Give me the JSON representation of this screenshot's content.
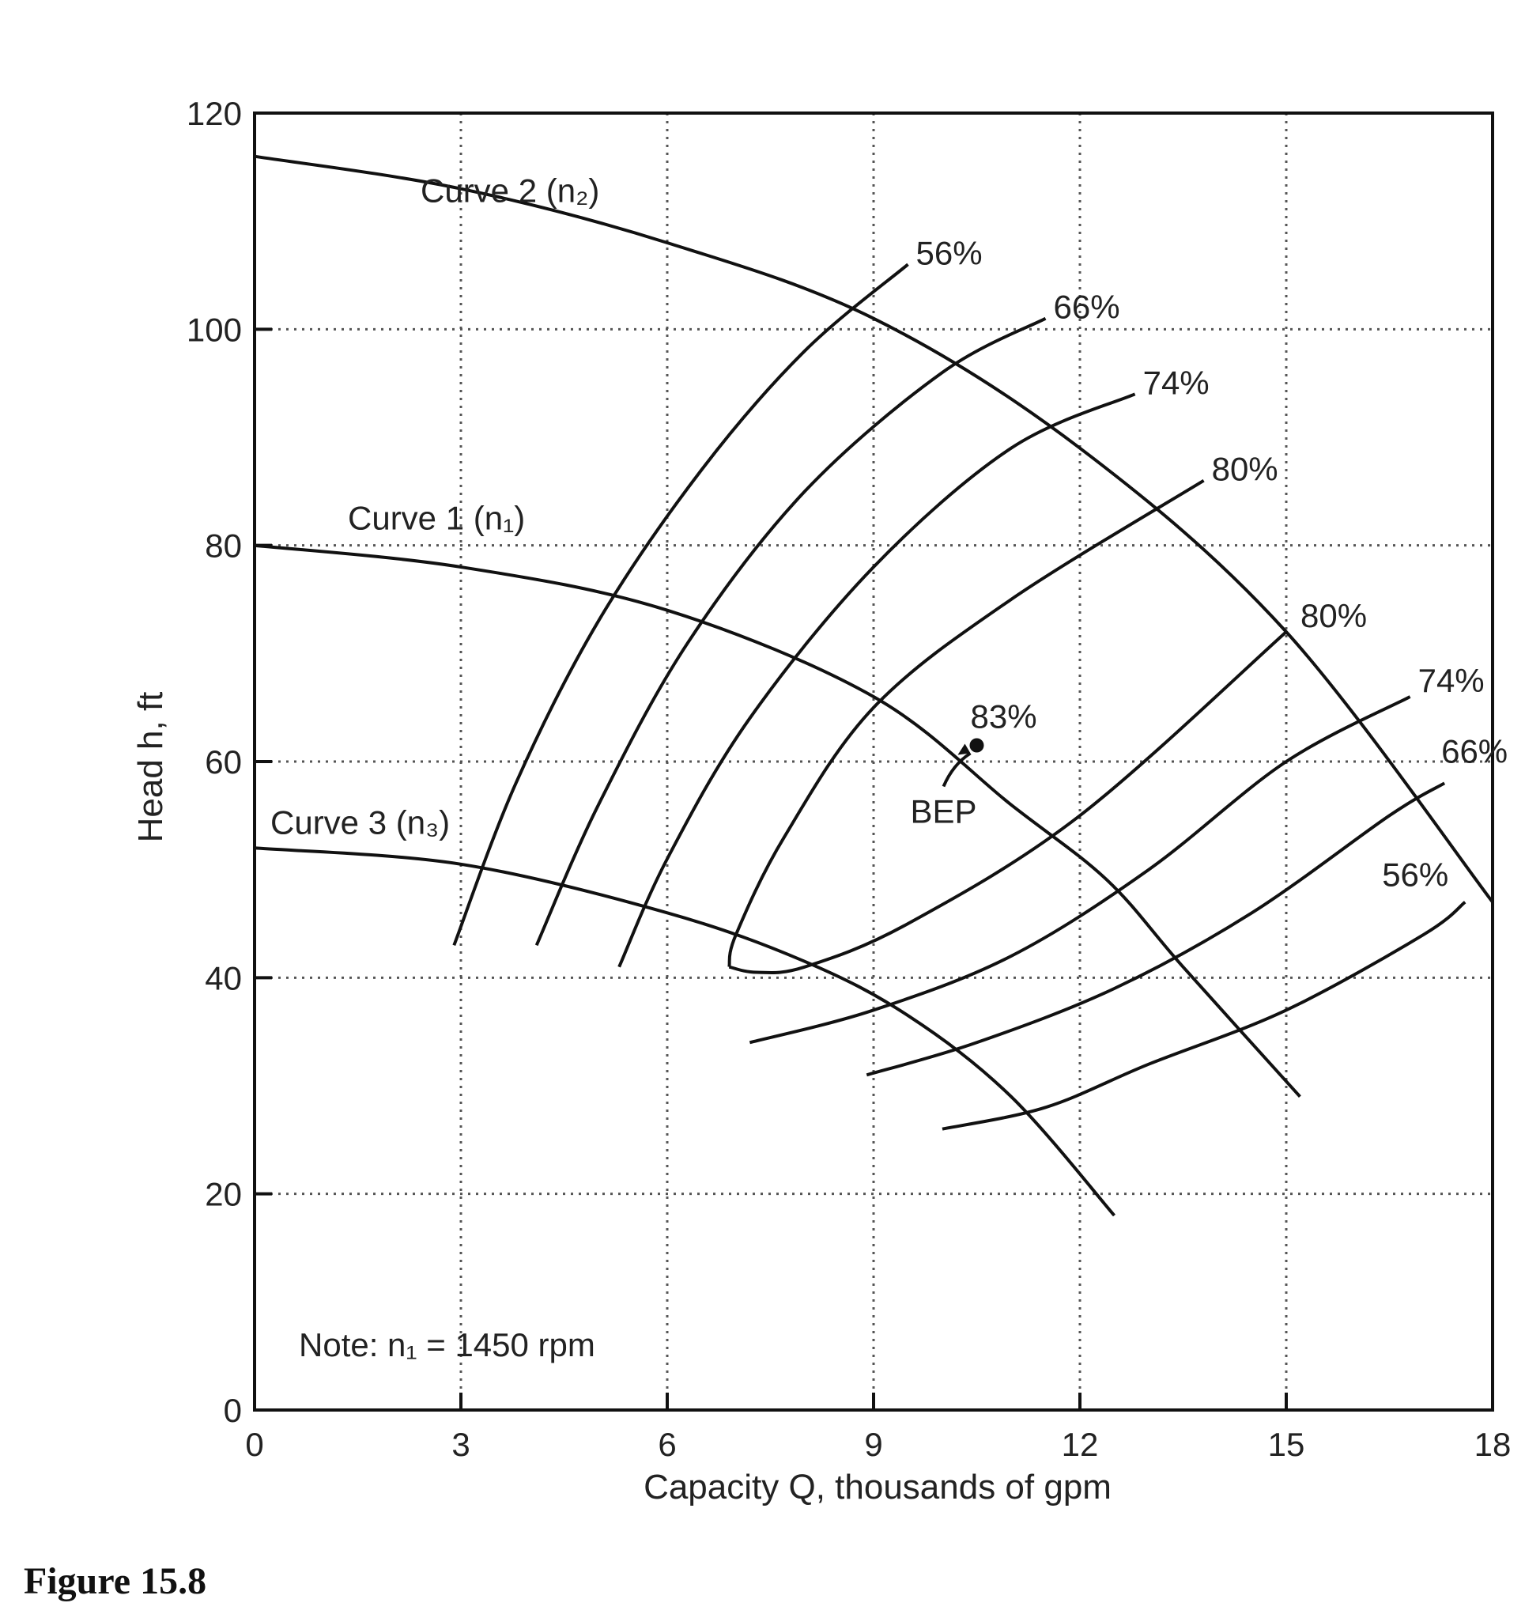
{
  "chart_data": {
    "type": "line",
    "xlabel": "Capacity Q, thousands of gpm",
    "ylabel": "Head h, ft",
    "xlim": [
      0,
      18
    ],
    "ylim": [
      0,
      120
    ],
    "xticks": [
      "0",
      "3",
      "6",
      "9",
      "12",
      "15",
      "18"
    ],
    "yticks": [
      "0",
      "20",
      "40",
      "60",
      "80",
      "100",
      "120"
    ],
    "grid": true,
    "note": "Note: n₁ = 1450 rpm",
    "head_curves": [
      {
        "name": "Curve 2 (n₂)",
        "x": [
          0,
          3,
          6,
          9,
          12,
          15,
          18
        ],
        "y": [
          116,
          113,
          108,
          101,
          89,
          72,
          47
        ]
      },
      {
        "name": "Curve 1 (n₁)",
        "x": [
          0,
          3,
          6,
          9,
          11,
          12.4,
          13.5,
          15.2
        ],
        "y": [
          80,
          78,
          74,
          66,
          56,
          49,
          41,
          29
        ]
      },
      {
        "name": "Curve 3 (n₃)",
        "x": [
          0,
          3,
          6,
          8,
          9.5,
          11,
          12.5
        ],
        "y": [
          52,
          50.5,
          46,
          41.5,
          36.5,
          29,
          18
        ]
      }
    ],
    "efficiency_curves": [
      {
        "name": "56%",
        "x": [
          2.9,
          3.8,
          5,
          6.5,
          8,
          9.5
        ],
        "y": [
          43,
          58,
          73,
          87,
          98,
          106
        ]
      },
      {
        "name": "66%",
        "x": [
          4.1,
          5,
          6.3,
          8,
          10,
          11.5
        ],
        "y": [
          43,
          56,
          71,
          85,
          96,
          101
        ]
      },
      {
        "name": "74%",
        "x": [
          5.3,
          6,
          7.2,
          9,
          11,
          12.8
        ],
        "y": [
          41,
          51,
          64,
          78,
          89,
          94
        ]
      },
      {
        "name": "80%",
        "x": [
          6.9,
          7,
          7.7,
          9,
          11,
          13.8
        ],
        "y": [
          41,
          44,
          53,
          65,
          75,
          86
        ]
      },
      {
        "name": "80%",
        "x": [
          6.9,
          7.3,
          8,
          9.5,
          12,
          15
        ],
        "y": [
          41,
          40.5,
          41,
          45,
          55,
          72
        ]
      },
      {
        "name": "74%",
        "x": [
          7.2,
          9,
          11,
          13,
          15,
          16.8
        ],
        "y": [
          34,
          37,
          42,
          50,
          60,
          66
        ]
      },
      {
        "name": "66%",
        "x": [
          8.9,
          10.5,
          12.5,
          14.5,
          16.5,
          17.3
        ],
        "y": [
          31,
          34,
          39,
          46,
          55,
          58
        ]
      },
      {
        "name": "56%",
        "x": [
          10,
          11.5,
          13,
          15,
          17,
          17.6
        ],
        "y": [
          26,
          28,
          32,
          37,
          44,
          47
        ]
      }
    ],
    "bep": {
      "x": 10.5,
      "y": 61.5,
      "efficiency_label": "83%",
      "label": "BEP"
    }
  },
  "figure": {
    "label": "Figure 15.8"
  }
}
